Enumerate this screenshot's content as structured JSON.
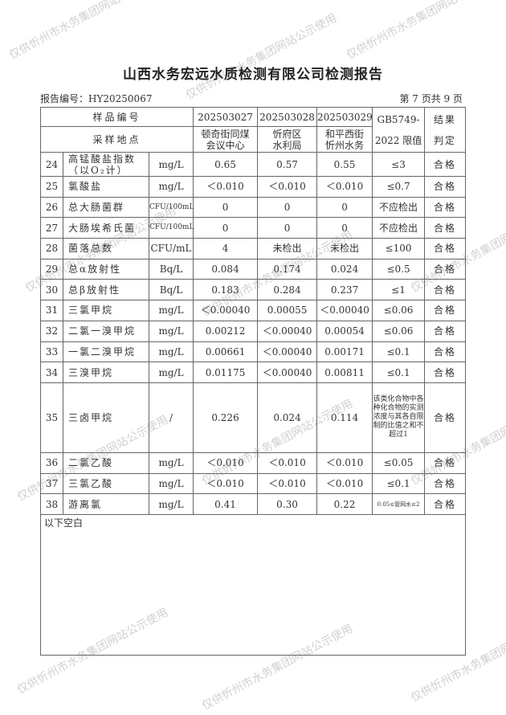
{
  "title": "山西水务宏远水质检测有限公司检测报告",
  "report_no": "报告编号：HY20250067",
  "page": "第 7 页共 9 页",
  "header": {
    "sample_no": "样品编号",
    "site": "采样地点",
    "samples": [
      "202503027",
      "202503028",
      "202503029"
    ],
    "sites": [
      [
        "顿奇街同煤",
        "会议中心"
      ],
      [
        "忻府区",
        "水利局"
      ],
      [
        "和平西街",
        "忻州水务"
      ]
    ],
    "limit": [
      "GB5749-",
      "2022 限值"
    ],
    "result": [
      "结果",
      "判定"
    ]
  },
  "rows": [
    {
      "no": "24",
      "name": "高锰酸盐指数",
      "name2": "（以O₂计）",
      "unit": "mg/L",
      "v": [
        "0.65",
        "0.57",
        "0.55"
      ],
      "limit": "≤3",
      "result": "合格"
    },
    {
      "no": "25",
      "name": "氯酸盐",
      "unit": "mg/L",
      "v": [
        "＜0.010",
        "＜0.010",
        "＜0.010"
      ],
      "limit": "≤0.7",
      "result": "合格"
    },
    {
      "no": "26",
      "name": "总大肠菌群",
      "unit": "CFU/100mL",
      "v": [
        "0",
        "0",
        "0"
      ],
      "limit": "不应检出",
      "result": "合格"
    },
    {
      "no": "27",
      "name": "大肠埃希氏菌",
      "unit": "CFU/100mL",
      "v": [
        "0",
        "0",
        "0"
      ],
      "limit": "不应检出",
      "result": "合格"
    },
    {
      "no": "28",
      "name": "菌落总数",
      "unit": "CFU/mL",
      "v": [
        "4",
        "未检出",
        "未检出"
      ],
      "limit": "≤100",
      "result": "合格"
    },
    {
      "no": "29",
      "name": "总α放射性",
      "unit": "Bq/L",
      "v": [
        "0.084",
        "0.174",
        "0.024"
      ],
      "limit": "≤0.5",
      "result": "合格"
    },
    {
      "no": "30",
      "name": "总β放射性",
      "unit": "Bq/L",
      "v": [
        "0.183",
        "0.284",
        "0.237"
      ],
      "limit": "≤1",
      "result": "合格"
    },
    {
      "no": "31",
      "name": "三氯甲烷",
      "unit": "mg/L",
      "v": [
        "＜0.00040",
        "0.00055",
        "＜0.00040"
      ],
      "limit": "≤0.06",
      "result": "合格"
    },
    {
      "no": "32",
      "name": "二氯一溴甲烷",
      "unit": "mg/L",
      "v": [
        "0.00212",
        "＜0.00040",
        "0.00054"
      ],
      "limit": "≤0.06",
      "result": "合格"
    },
    {
      "no": "33",
      "name": "一氯二溴甲烷",
      "unit": "mg/L",
      "v": [
        "0.00661",
        "＜0.00040",
        "0.00171"
      ],
      "limit": "≤0.1",
      "result": "合格"
    },
    {
      "no": "34",
      "name": "三溴甲烷",
      "unit": "mg/L",
      "v": [
        "0.01175",
        "＜0.00040",
        "0.00811"
      ],
      "limit": "≤0.1",
      "result": "合格"
    },
    {
      "no": "35",
      "name": "三卤甲烷",
      "unit": "/",
      "v": [
        "0.226",
        "0.024",
        "0.114"
      ],
      "limit": "该类化合物中各种化合物的实测浓度与其各自限制的比值之和不超过1",
      "result": "合格",
      "small": true
    },
    {
      "no": "36",
      "name": "二氯乙酸",
      "unit": "mg/L",
      "v": [
        "＜0.010",
        "＜0.010",
        "＜0.010"
      ],
      "limit": "≤0.05",
      "result": "合格"
    },
    {
      "no": "37",
      "name": "三氯乙酸",
      "unit": "mg/L",
      "v": [
        "＜0.010",
        "＜0.010",
        "＜0.010"
      ],
      "limit": "≤0.1",
      "result": "合格"
    },
    {
      "no": "38",
      "name": "游离氯",
      "unit": "mg/L",
      "v": [
        "0.41",
        "0.30",
        "0.22"
      ],
      "limit": "0.05≤管网水≤2",
      "result": "合格",
      "tiny": true
    }
  ],
  "blank_note": "以下空白",
  "watermark": "仅供忻州市水务集团网站公示使用"
}
